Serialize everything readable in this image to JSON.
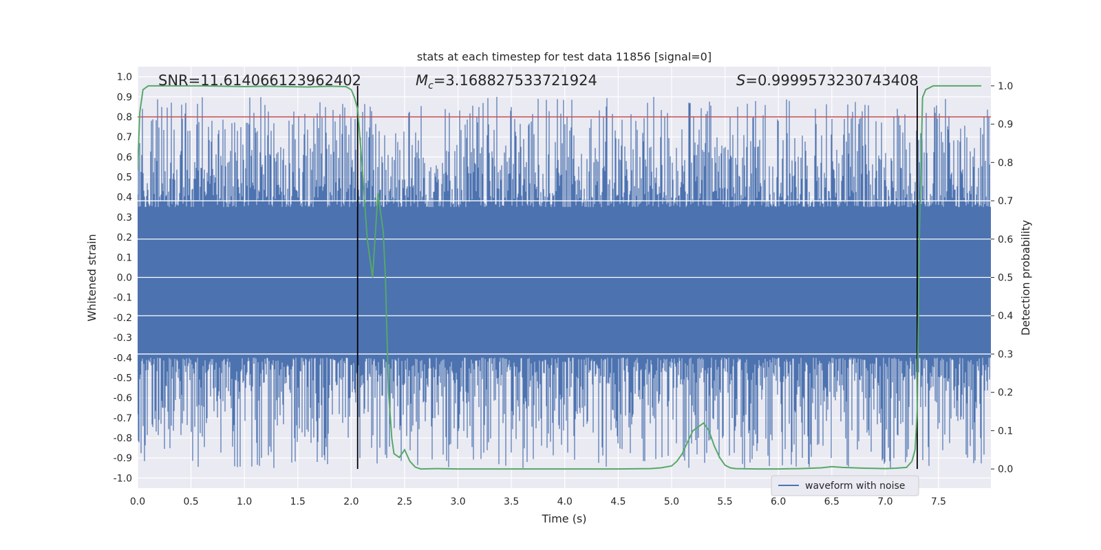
{
  "chart_data": {
    "type": "line",
    "title": "stats at each timestep for test data 11856 [signal=0]",
    "xlabel": "Time (s)",
    "ylabel_left": "Whitened strain",
    "ylabel_right": "Detection probability",
    "xlim": [
      0,
      7.99
    ],
    "ylim_left": [
      -1.05,
      1.05
    ],
    "ylim_right": [
      -0.05,
      1.05
    ],
    "x_ticks": [
      "0.0",
      "0.5",
      "1.0",
      "1.5",
      "2.0",
      "2.5",
      "3.0",
      "3.5",
      "4.0",
      "4.5",
      "5.0",
      "5.5",
      "6.0",
      "6.5",
      "7.0",
      "7.5"
    ],
    "y_left_ticks": [
      "1.0",
      "0.9",
      "0.8",
      "0.7",
      "0.6",
      "0.5",
      "0.4",
      "0.3",
      "0.2",
      "0.1",
      "0.0",
      "-0.1",
      "-0.2",
      "-0.3",
      "-0.4",
      "-0.5",
      "-0.6",
      "-0.7",
      "-0.8",
      "-0.9",
      "-1.0"
    ],
    "y_right_ticks": [
      "1.0",
      "0.9",
      "0.8",
      "0.7",
      "0.6",
      "0.5",
      "0.4",
      "0.3",
      "0.2",
      "0.1",
      "0.0"
    ],
    "threshold_left_y": 0.8,
    "vertical_markers_x": [
      2.06,
      7.3
    ],
    "annotations": {
      "snr": "SNR=11.614066123962402",
      "mc_symbol": "M",
      "mc_sub": "c",
      "mc_value": "=3.168827533721924",
      "s_symbol": "S",
      "s_value": "=0.9999573230743408"
    },
    "legend": [
      "waveform with noise"
    ],
    "series": [
      {
        "name": "waveform with noise",
        "color": "#4c72b0",
        "axis": "left",
        "envelope": {
          "core_upper": 0.35,
          "core_lower": -0.4,
          "peak_upper": 0.9,
          "peak_lower": -0.95
        }
      },
      {
        "name": "detection probability",
        "color": "#55a868",
        "axis": "right",
        "x": [
          0.0,
          0.02,
          0.05,
          0.1,
          0.2,
          0.4,
          0.6,
          0.8,
          1.0,
          1.2,
          1.4,
          1.6,
          1.8,
          1.95,
          2.0,
          2.03,
          2.06,
          2.1,
          2.15,
          2.2,
          2.25,
          2.28,
          2.3,
          2.32,
          2.35,
          2.38,
          2.4,
          2.45,
          2.5,
          2.55,
          2.6,
          2.65,
          2.8,
          3.0,
          3.5,
          4.0,
          4.5,
          4.8,
          4.9,
          5.0,
          5.05,
          5.1,
          5.15,
          5.2,
          5.25,
          5.3,
          5.35,
          5.4,
          5.45,
          5.5,
          5.55,
          5.6,
          5.8,
          6.0,
          6.2,
          6.4,
          6.5,
          6.6,
          6.8,
          7.0,
          7.1,
          7.2,
          7.25,
          7.28,
          7.3,
          7.32,
          7.35,
          7.38,
          7.45,
          7.5,
          7.7,
          7.9
        ],
        "values": [
          0.78,
          0.93,
          0.99,
          1.0,
          1.0,
          1.0,
          1.0,
          0.999,
          0.998,
          0.999,
          0.998,
          0.997,
          0.999,
          0.998,
          0.99,
          0.97,
          0.94,
          0.8,
          0.6,
          0.5,
          0.72,
          0.66,
          0.62,
          0.5,
          0.2,
          0.08,
          0.04,
          0.03,
          0.05,
          0.02,
          0.005,
          0.0,
          0.001,
          0.0,
          0.0,
          0.0,
          0.0,
          0.001,
          0.003,
          0.008,
          0.02,
          0.04,
          0.07,
          0.1,
          0.11,
          0.12,
          0.1,
          0.06,
          0.03,
          0.01,
          0.003,
          0.001,
          0.0,
          0.0,
          0.001,
          0.003,
          0.006,
          0.004,
          0.002,
          0.001,
          0.002,
          0.004,
          0.02,
          0.05,
          0.15,
          0.6,
          0.97,
          0.99,
          1.0,
          1.0,
          1.0,
          1.0
        ]
      },
      {
        "name": "threshold",
        "color": "#c44e52",
        "axis": "left",
        "values": [
          0.8
        ]
      }
    ]
  }
}
